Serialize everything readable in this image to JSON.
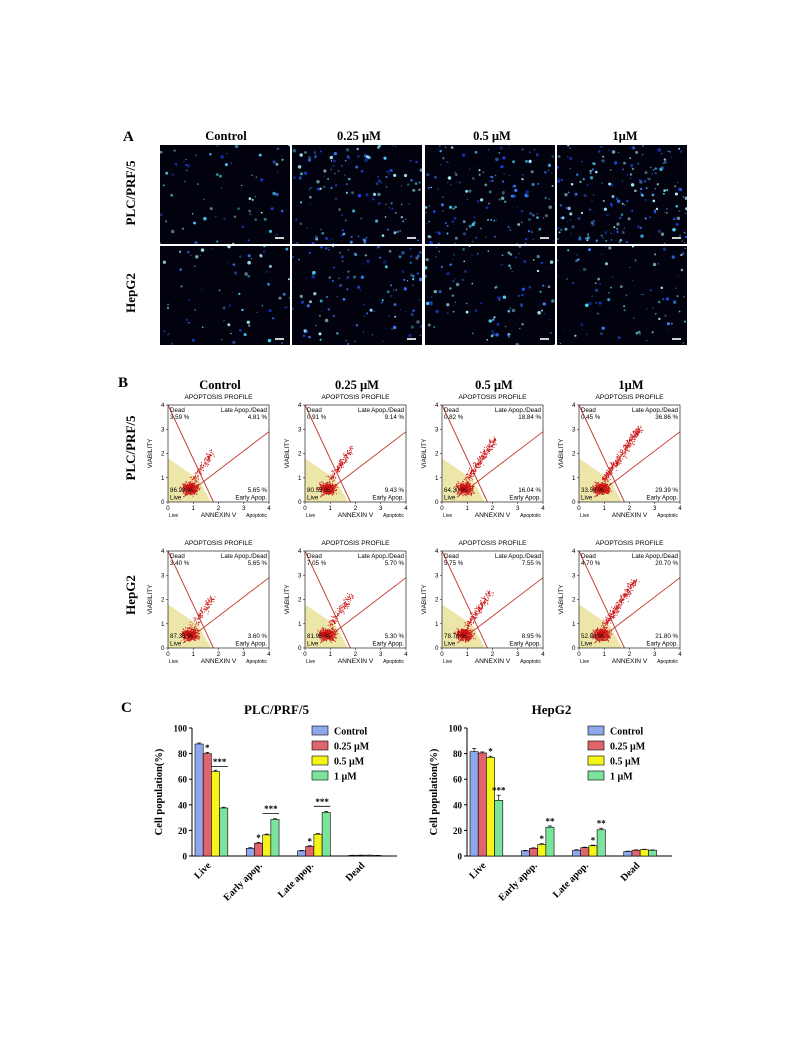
{
  "panel_a": {
    "letter": "A",
    "columns": [
      "Control",
      "0.25 µM",
      "0.5 µM",
      "1µM"
    ],
    "rows": [
      "PLC/PRF/5",
      "HepG2"
    ],
    "cell_colors": [
      "#3a7dff",
      "#4fd6ff",
      "#a8f0ff",
      "#1e4cff"
    ],
    "density": [
      [
        70,
        140,
        160,
        200
      ],
      [
        70,
        120,
        110,
        90
      ]
    ]
  },
  "panel_b": {
    "letter": "B",
    "columns": [
      "Control",
      "0.25 µM",
      "0.5 µM",
      "1µM"
    ],
    "rows": [
      "PLC/PRF/5",
      "HepG2"
    ],
    "plot_title": "APOPTOSIS PROFILE",
    "x_axis_label": "ANNEXIN V",
    "y_axis_label": "VIABILITY",
    "quadrant_labels": {
      "dead": "Dead",
      "late": "Late Apop./Dead",
      "live": "Live",
      "early": "Early Apop.",
      "axis_live": "Live",
      "axis_apoptotic": "Apoptotic"
    },
    "ticks": [
      "0",
      "1",
      "2",
      "3",
      "4"
    ],
    "colors": {
      "dots": "#cc1414",
      "live_zone": "#ece6a8",
      "lines": "#c0392b"
    },
    "plots": [
      [
        {
          "dead": "3.59 %",
          "late": "4.81 %",
          "live": "86.98 %",
          "early": "5.65 %",
          "spread": 0.2
        },
        {
          "dead": "0.91 %",
          "late": "9.14 %",
          "live": "80.53 %",
          "early": "9.43 %",
          "spread": 0.3
        },
        {
          "dead": "0.82 %",
          "late": "18.84 %",
          "live": "64.30 %",
          "early": "16.04 %",
          "spread": 0.55
        },
        {
          "dead": "0.45 %",
          "late": "36.86 %",
          "live": "33.50 %",
          "early": "29.39 %",
          "spread": 0.9
        }
      ],
      [
        {
          "dead": "3.40 %",
          "late": "5.65 %",
          "live": "87.35 %",
          "early": "3.60 %",
          "spread": 0.2
        },
        {
          "dead": "7.05 %",
          "late": "5.70 %",
          "live": "81.95 %",
          "early": "5.30 %",
          "spread": 0.25
        },
        {
          "dead": "5.75 %",
          "late": "7.55 %",
          "live": "78.76 %",
          "early": "8.95 %",
          "spread": 0.35
        },
        {
          "dead": "4.70 %",
          "late": "20.70 %",
          "live": "52.80 %",
          "early": "21.80 %",
          "spread": 0.7
        }
      ]
    ]
  },
  "panel_c": {
    "letter": "C",
    "legend_colors": [
      "#8fa8ec",
      "#e0646b",
      "#f5f51a",
      "#7be39c"
    ],
    "chart_data": [
      {
        "type": "bar",
        "title": "PLC/PRF/5",
        "ylabel": "Cell population(%)",
        "ylim": [
          0,
          100
        ],
        "yticks": [
          0,
          20,
          40,
          60,
          80,
          100
        ],
        "categories": [
          "Live",
          "Early apop.",
          "Late apop.",
          "Dead"
        ],
        "legend_placement": "top-right",
        "series": [
          {
            "name": "Control",
            "values": [
              87.5,
              6,
              4,
              0.5
            ],
            "errors": [
              0.8,
              0.5,
              0.4,
              0.1
            ]
          },
          {
            "name": "0.25 µM",
            "values": [
              80,
              10,
              7.5,
              0.6
            ],
            "errors": [
              1,
              0.6,
              0.5,
              0.1
            ]
          },
          {
            "name": "0.5 µM",
            "values": [
              66,
              16.5,
              17,
              0.6
            ],
            "errors": [
              1,
              0.6,
              0.5,
              0.1
            ]
          },
          {
            "name": "1 µM",
            "values": [
              37.5,
              28.5,
              34,
              0.4
            ],
            "errors": [
              0.6,
              0.6,
              0.8,
              0.1
            ]
          }
        ],
        "significance": [
          {
            "category": 0,
            "series": 1,
            "label": "*"
          },
          {
            "category": 0,
            "series": 3,
            "label": "***",
            "bracket_from": 2
          },
          {
            "category": 1,
            "series": 1,
            "label": "*"
          },
          {
            "category": 1,
            "series": 3,
            "label": "***",
            "bracket_from": 2
          },
          {
            "category": 2,
            "series": 1,
            "label": "*"
          },
          {
            "category": 2,
            "series": 3,
            "label": "***",
            "bracket_from": 2
          }
        ]
      },
      {
        "type": "bar",
        "title": "HepG2",
        "ylabel": "Cell population(%)",
        "ylim": [
          0,
          100
        ],
        "yticks": [
          0,
          20,
          40,
          60,
          80,
          100
        ],
        "categories": [
          "Live",
          "Early apop.",
          "Late apop.",
          "Dead"
        ],
        "legend_placement": "top-right",
        "series": [
          {
            "name": "Control",
            "values": [
              81.5,
              4,
              4.5,
              3.5
            ],
            "errors": [
              2.5,
              0.4,
              0.4,
              0.3
            ]
          },
          {
            "name": "0.25 µM",
            "values": [
              80.5,
              6,
              6.5,
              4.5
            ],
            "errors": [
              0.8,
              0.4,
              0.4,
              0.3
            ]
          },
          {
            "name": "0.5 µM",
            "values": [
              77,
              9,
              8,
              5
            ],
            "errors": [
              1,
              0.6,
              0.5,
              0.3
            ]
          },
          {
            "name": "1 µM",
            "values": [
              43.5,
              22.5,
              20.5,
              4.5
            ],
            "errors": [
              4,
              1,
              1.2,
              0.3
            ]
          }
        ],
        "significance": [
          {
            "category": 0,
            "series": 2,
            "label": "*"
          },
          {
            "category": 0,
            "series": 3,
            "label": "***"
          },
          {
            "category": 1,
            "series": 2,
            "label": "*"
          },
          {
            "category": 1,
            "series": 3,
            "label": "**"
          },
          {
            "category": 2,
            "series": 2,
            "label": "*"
          },
          {
            "category": 2,
            "series": 3,
            "label": "**"
          }
        ]
      }
    ]
  }
}
